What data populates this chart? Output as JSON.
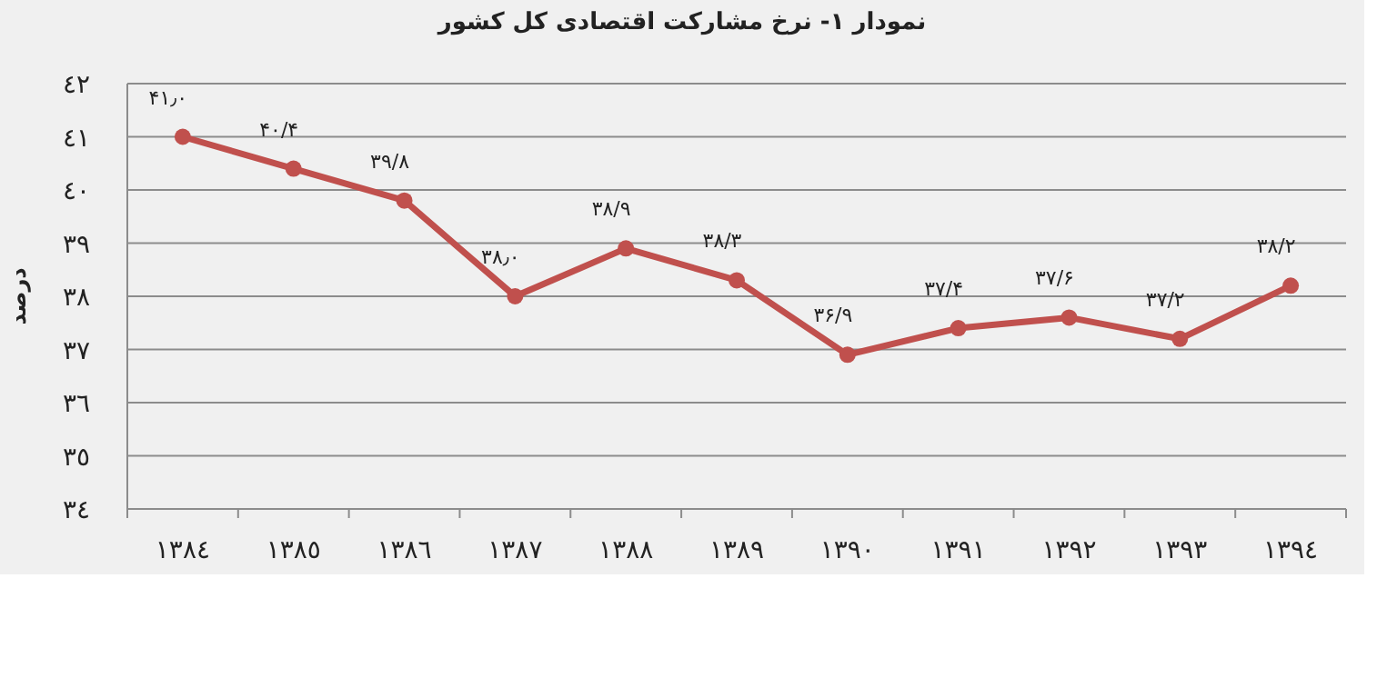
{
  "chart_data": {
    "type": "line",
    "title": "نمودار ۱- نرخ مشارکت اقتصادی کل کشور",
    "ylabel": "درصد",
    "categories": [
      "١٣٨٤",
      "١٣٨٥",
      "١٣٨٦",
      "١٣٨٧",
      "١٣٨٨",
      "١٣٨٩",
      "١٣٩٠",
      "١٣٩١",
      "١٣٩٢",
      "١٣٩٣",
      "١٣٩٤"
    ],
    "series": [
      {
        "color": "#c0504d",
        "values": [
          41.0,
          40.4,
          39.8,
          38.0,
          38.9,
          38.3,
          36.9,
          37.4,
          37.6,
          37.2,
          38.2
        ],
        "value_labels": [
          "۴۱٫۰",
          "۴۰/۴",
          "۳۹/۸",
          "۳۸٫۰",
          "۳۸/۹",
          "۳۸/۳",
          "۳۶/۹",
          "۳۷/۴",
          "۳۷/۶",
          "۳۷/۲",
          "۳۸/۲"
        ]
      }
    ],
    "ylim": [
      34,
      42
    ],
    "yticks": [
      {
        "value": 34,
        "label": "٣٤"
      },
      {
        "value": 35,
        "label": "٣٥"
      },
      {
        "value": 36,
        "label": "٣٦"
      },
      {
        "value": 37,
        "label": "٣٧"
      },
      {
        "value": 38,
        "label": "٣٨"
      },
      {
        "value": 39,
        "label": "٣٩"
      },
      {
        "value": 40,
        "label": "٤٠"
      },
      {
        "value": 41,
        "label": "٤١"
      },
      {
        "value": 42,
        "label": "٤٢"
      }
    ],
    "grid": "y",
    "marker": "circle",
    "line_style": "solid"
  }
}
